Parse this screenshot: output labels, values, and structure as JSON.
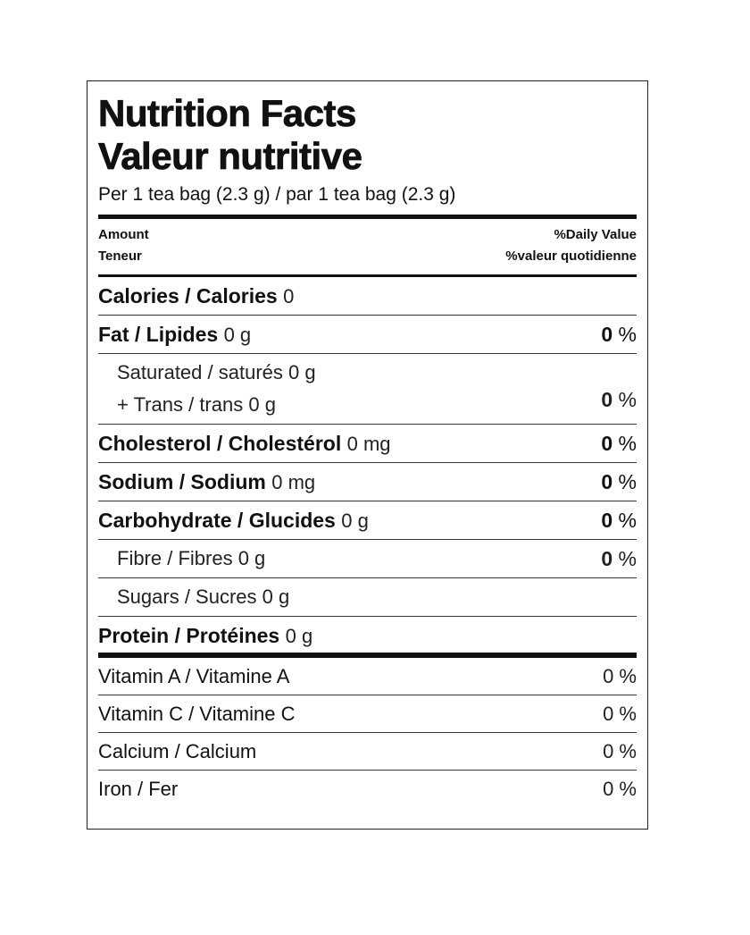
{
  "title_en": "Nutrition Facts",
  "title_fr": "Valeur nutritive",
  "serving": "Per 1 tea bag (2.3 g) / par 1 tea bag (2.3 g)",
  "header": {
    "amount_en": "Amount",
    "amount_fr": "Teneur",
    "dv_en": "%Daily Value",
    "dv_fr": "%valeur quotidienne"
  },
  "calories": {
    "label": "Calories / Calories",
    "amount": "0"
  },
  "fat": {
    "label": "Fat / Lipides",
    "amount": "0 g",
    "dv": "0",
    "dv_unit": "%"
  },
  "saturated_trans": {
    "line1": "Saturated / saturés 0 g",
    "line2": "+ Trans / trans 0 g",
    "dv": "0",
    "dv_unit": "%"
  },
  "cholesterol": {
    "label": "Cholesterol / Cholestérol",
    "amount": "0 mg",
    "dv": "0",
    "dv_unit": "%"
  },
  "sodium": {
    "label": "Sodium / Sodium",
    "amount": "0 mg",
    "dv": "0",
    "dv_unit": "%"
  },
  "carbohydrate": {
    "label": "Carbohydrate / Glucides",
    "amount": "0 g",
    "dv": "0",
    "dv_unit": "%"
  },
  "fibre": {
    "label": "Fibre / Fibres 0 g",
    "dv": "0",
    "dv_unit": "%"
  },
  "sugars": {
    "label": "Sugars / Sucres 0 g"
  },
  "protein": {
    "label": "Protein / Protéines",
    "amount": "0 g"
  },
  "vitamins": [
    {
      "label": "Vitamin A / Vitamine A",
      "dv": "0 %"
    },
    {
      "label": "Vitamin C / Vitamine C",
      "dv": "0 %"
    },
    {
      "label": "Calcium / Calcium",
      "dv": "0 %"
    },
    {
      "label": "Iron / Fer",
      "dv": "0 %"
    }
  ]
}
